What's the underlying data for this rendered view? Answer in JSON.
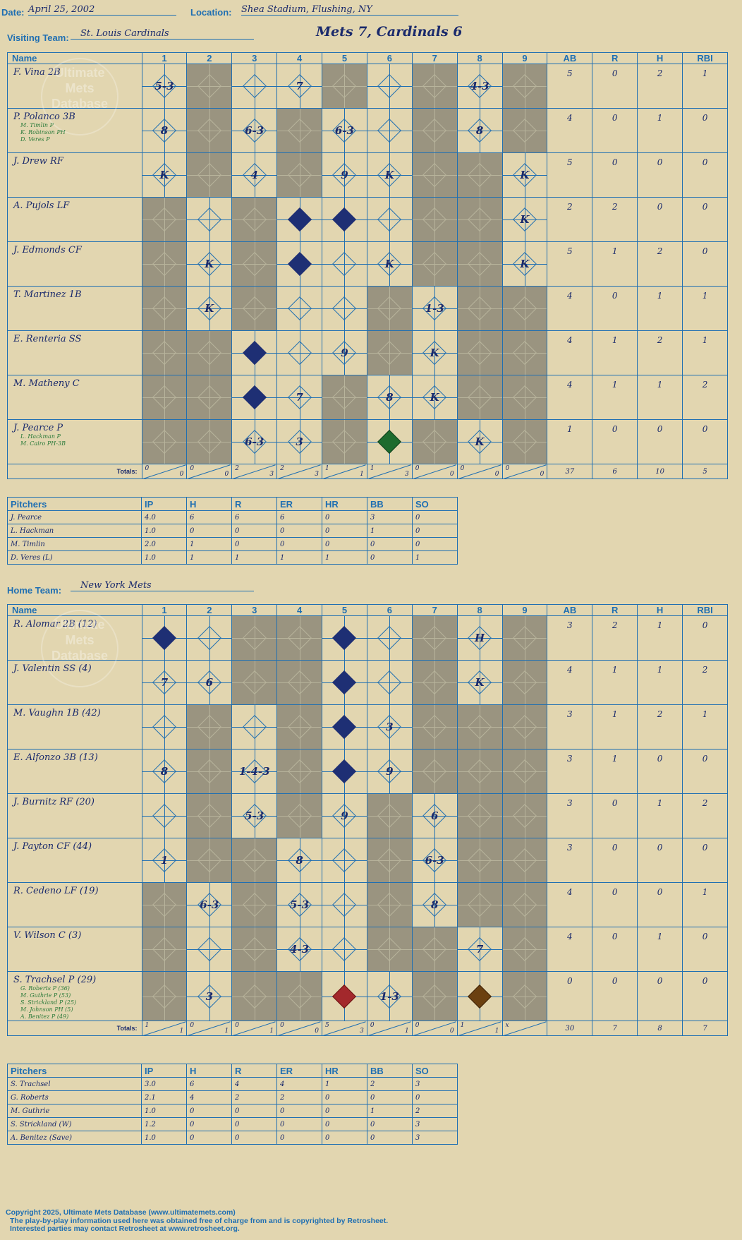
{
  "header": {
    "date_label": "Date:",
    "date": "April 25, 2002",
    "location_label": "Location:",
    "location": "Shea Stadium, Flushing, NY",
    "visiting_label": "Visiting Team:",
    "visiting_team": "St. Louis Cardinals",
    "game_title": "Mets 7, Cardinals 6",
    "home_label": "Home Team:",
    "home_team": "New York Mets"
  },
  "columns": {
    "name": "Name",
    "innings": [
      "1",
      "2",
      "3",
      "4",
      "5",
      "6",
      "7",
      "8",
      "9"
    ],
    "stats": [
      "AB",
      "R",
      "H",
      "RBI"
    ],
    "totals_label": "Totals:",
    "r": "R",
    "h": "H"
  },
  "watermark": "Ultimate Mets Database",
  "visitors": {
    "rows": [
      {
        "name": "F. Vina 2B",
        "subs": [],
        "stats": [
          "5",
          "0",
          "2",
          "1"
        ],
        "marks": [
          "5-3",
          "",
          "",
          "7",
          "",
          "",
          "",
          "4-3",
          ""
        ],
        "gray": [
          0,
          1,
          0,
          0,
          1,
          0,
          1,
          0,
          1
        ],
        "filled": []
      },
      {
        "name": "P. Polanco 3B",
        "subs": [
          "M. Timlin P",
          "K. Robinson PH",
          "D. Veres P"
        ],
        "stats": [
          "4",
          "0",
          "1",
          "0"
        ],
        "marks": [
          "8",
          "",
          "6-3",
          "",
          "6-3",
          "",
          "",
          "8",
          ""
        ],
        "gray": [
          0,
          1,
          0,
          1,
          0,
          0,
          1,
          0,
          1
        ],
        "filled": []
      },
      {
        "name": "J. Drew RF",
        "subs": [],
        "stats": [
          "5",
          "0",
          "0",
          "0"
        ],
        "marks": [
          "K",
          "",
          "4",
          "",
          "9",
          "K",
          "",
          "",
          "K"
        ],
        "gray": [
          0,
          1,
          0,
          1,
          0,
          0,
          1,
          1,
          0
        ],
        "filled": []
      },
      {
        "name": "A. Pujols LF",
        "subs": [],
        "stats": [
          "2",
          "2",
          "0",
          "0"
        ],
        "marks": [
          "",
          "",
          "",
          "",
          "",
          "",
          "",
          "",
          "K"
        ],
        "gray": [
          1,
          0,
          1,
          0,
          0,
          0,
          1,
          1,
          0
        ],
        "filled": [
          3,
          4
        ]
      },
      {
        "name": "J. Edmonds CF",
        "subs": [],
        "stats": [
          "5",
          "1",
          "2",
          "0"
        ],
        "marks": [
          "",
          "K",
          "",
          "",
          "",
          "K",
          "",
          "",
          "K"
        ],
        "gray": [
          1,
          0,
          1,
          0,
          0,
          0,
          1,
          1,
          0
        ],
        "filled": [
          3
        ]
      },
      {
        "name": "T. Martinez 1B",
        "subs": [],
        "stats": [
          "4",
          "0",
          "1",
          "1"
        ],
        "marks": [
          "",
          "K",
          "",
          "",
          "",
          "",
          "1-3",
          "",
          ""
        ],
        "gray": [
          1,
          0,
          1,
          0,
          0,
          1,
          0,
          1,
          1
        ],
        "filled": []
      },
      {
        "name": "E. Renteria SS",
        "subs": [],
        "stats": [
          "4",
          "1",
          "2",
          "1"
        ],
        "marks": [
          "",
          "",
          "",
          "",
          "9",
          "",
          "K",
          "",
          ""
        ],
        "gray": [
          1,
          1,
          0,
          0,
          0,
          1,
          0,
          1,
          1
        ],
        "filled": [
          2
        ]
      },
      {
        "name": "M. Matheny C",
        "subs": [],
        "stats": [
          "4",
          "1",
          "1",
          "2"
        ],
        "marks": [
          "",
          "",
          "",
          "7",
          "",
          "8",
          "K",
          "",
          ""
        ],
        "gray": [
          1,
          1,
          0,
          0,
          1,
          0,
          0,
          1,
          1
        ],
        "filled": [
          2
        ]
      },
      {
        "name": "J. Pearce P",
        "subs": [
          "L. Hackman P",
          "M. Cairo PH-3B"
        ],
        "stats": [
          "1",
          "0",
          "0",
          "0"
        ],
        "marks": [
          "",
          "",
          "6-3",
          "3",
          "",
          "",
          "",
          "K",
          ""
        ],
        "gray": [
          1,
          1,
          0,
          0,
          1,
          0,
          1,
          0,
          1
        ],
        "filled": [],
        "green": [
          5
        ]
      }
    ],
    "totals": {
      "innings": [
        [
          "0",
          "0"
        ],
        [
          "0",
          "0"
        ],
        [
          "2",
          "3"
        ],
        [
          "2",
          "3"
        ],
        [
          "1",
          "1"
        ],
        [
          "1",
          "3"
        ],
        [
          "0",
          "0"
        ],
        [
          "0",
          "0"
        ],
        [
          "0",
          "0"
        ]
      ],
      "stats": [
        "37",
        "6",
        "10",
        "5"
      ]
    }
  },
  "visitor_pitching": {
    "headers": [
      "Pitchers",
      "IP",
      "H",
      "R",
      "ER",
      "HR",
      "BB",
      "SO"
    ],
    "rows": [
      [
        "J. Pearce",
        "4.0",
        "6",
        "6",
        "6",
        "0",
        "3",
        "0"
      ],
      [
        "L. Hackman",
        "1.0",
        "0",
        "0",
        "0",
        "0",
        "1",
        "0"
      ],
      [
        "M. Timlin",
        "2.0",
        "1",
        "0",
        "0",
        "0",
        "0",
        "0"
      ],
      [
        "D. Veres (L)",
        "1.0",
        "1",
        "1",
        "1",
        "1",
        "0",
        "1"
      ]
    ]
  },
  "home": {
    "rows": [
      {
        "name": "R. Alomar 2B (12)",
        "subs": [],
        "stats": [
          "3",
          "2",
          "1",
          "0"
        ],
        "marks": [
          "",
          "",
          "",
          "",
          "",
          "",
          "",
          "H",
          ""
        ],
        "gray": [
          0,
          0,
          1,
          1,
          0,
          0,
          1,
          0,
          1
        ],
        "filled": [
          0,
          4
        ]
      },
      {
        "name": "J. Valentin SS (4)",
        "subs": [],
        "stats": [
          "4",
          "1",
          "1",
          "2"
        ],
        "marks": [
          "7",
          "6",
          "",
          "",
          "",
          "",
          "",
          "K",
          ""
        ],
        "gray": [
          0,
          0,
          1,
          1,
          0,
          0,
          1,
          0,
          1
        ],
        "filled": [
          4
        ]
      },
      {
        "name": "M. Vaughn 1B (42)",
        "subs": [],
        "stats": [
          "3",
          "1",
          "2",
          "1"
        ],
        "marks": [
          "",
          "",
          "",
          "",
          "",
          "3",
          "",
          "",
          ""
        ],
        "gray": [
          0,
          1,
          0,
          1,
          0,
          0,
          1,
          1,
          1
        ],
        "filled": [
          4
        ]
      },
      {
        "name": "E. Alfonzo 3B (13)",
        "subs": [],
        "stats": [
          "3",
          "1",
          "0",
          "0"
        ],
        "marks": [
          "8",
          "",
          "1-4-3",
          "",
          "",
          "9",
          "",
          "",
          ""
        ],
        "gray": [
          0,
          1,
          0,
          1,
          0,
          0,
          1,
          1,
          1
        ],
        "filled": [
          4
        ]
      },
      {
        "name": "J. Burnitz RF (20)",
        "subs": [],
        "stats": [
          "3",
          "0",
          "1",
          "2"
        ],
        "marks": [
          "",
          "",
          "5-3",
          "",
          "9",
          "",
          "6",
          "",
          ""
        ],
        "gray": [
          0,
          1,
          0,
          1,
          0,
          1,
          0,
          1,
          1
        ],
        "filled": []
      },
      {
        "name": "J. Payton CF (44)",
        "subs": [],
        "stats": [
          "3",
          "0",
          "0",
          "0"
        ],
        "marks": [
          "1",
          "",
          "",
          "8",
          "",
          "",
          "6-3",
          "",
          ""
        ],
        "gray": [
          0,
          1,
          1,
          0,
          0,
          1,
          0,
          1,
          1
        ],
        "filled": []
      },
      {
        "name": "R. Cedeno LF (19)",
        "subs": [],
        "stats": [
          "4",
          "0",
          "0",
          "1"
        ],
        "marks": [
          "",
          "6-3",
          "",
          "5-3",
          "",
          "",
          "8",
          "",
          ""
        ],
        "gray": [
          1,
          0,
          1,
          0,
          0,
          1,
          0,
          1,
          1
        ],
        "filled": []
      },
      {
        "name": "V. Wilson C (3)",
        "subs": [],
        "stats": [
          "4",
          "0",
          "1",
          "0"
        ],
        "marks": [
          "",
          "",
          "",
          "4-3",
          "",
          "",
          "",
          "7",
          ""
        ],
        "gray": [
          1,
          0,
          1,
          0,
          0,
          1,
          1,
          0,
          1
        ],
        "filled": []
      },
      {
        "name": "S. Trachsel P (29)",
        "subs": [
          "G. Roberts P (36)",
          "M. Guthrie P (53)",
          "S. Strickland P (25)",
          "M. Johnson PH (5)",
          "A. Benitez P (49)"
        ],
        "stats": [
          "0",
          "0",
          "0",
          "0"
        ],
        "marks": [
          "",
          "3",
          "",
          "",
          "",
          "1-3",
          "",
          "",
          ""
        ],
        "gray": [
          1,
          0,
          1,
          1,
          0,
          0,
          1,
          0,
          1
        ],
        "filled": [],
        "red": [
          4
        ],
        "brown": [
          7
        ]
      }
    ],
    "totals": {
      "innings": [
        [
          "1",
          "1"
        ],
        [
          "0",
          "1"
        ],
        [
          "0",
          "1"
        ],
        [
          "0",
          "0"
        ],
        [
          "5",
          "3"
        ],
        [
          "0",
          "1"
        ],
        [
          "0",
          "0"
        ],
        [
          "1",
          "1"
        ],
        [
          "x",
          ""
        ]
      ],
      "stats": [
        "30",
        "7",
        "8",
        "7"
      ]
    }
  },
  "home_pitching": {
    "headers": [
      "Pitchers",
      "IP",
      "H",
      "R",
      "ER",
      "HR",
      "BB",
      "SO"
    ],
    "rows": [
      [
        "S. Trachsel",
        "3.0",
        "6",
        "4",
        "4",
        "1",
        "2",
        "3"
      ],
      [
        "G. Roberts",
        "2.1",
        "4",
        "2",
        "2",
        "0",
        "0",
        "0"
      ],
      [
        "M. Guthrie",
        "1.0",
        "0",
        "0",
        "0",
        "0",
        "1",
        "2"
      ],
      [
        "S. Strickland (W)",
        "1.2",
        "0",
        "0",
        "0",
        "0",
        "0",
        "3"
      ],
      [
        "A. Benitez (Save)",
        "1.0",
        "0",
        "0",
        "0",
        "0",
        "0",
        "3"
      ]
    ]
  },
  "footer": {
    "line1": "Copyright 2025, Ultimate Mets Database (www.ultimatemets.com)",
    "line2": "The play-by-play information used here was obtained free of charge from and is copyrighted by Retrosheet.",
    "line3": "Interested parties may contact Retrosheet at www.retrosheet.org."
  }
}
